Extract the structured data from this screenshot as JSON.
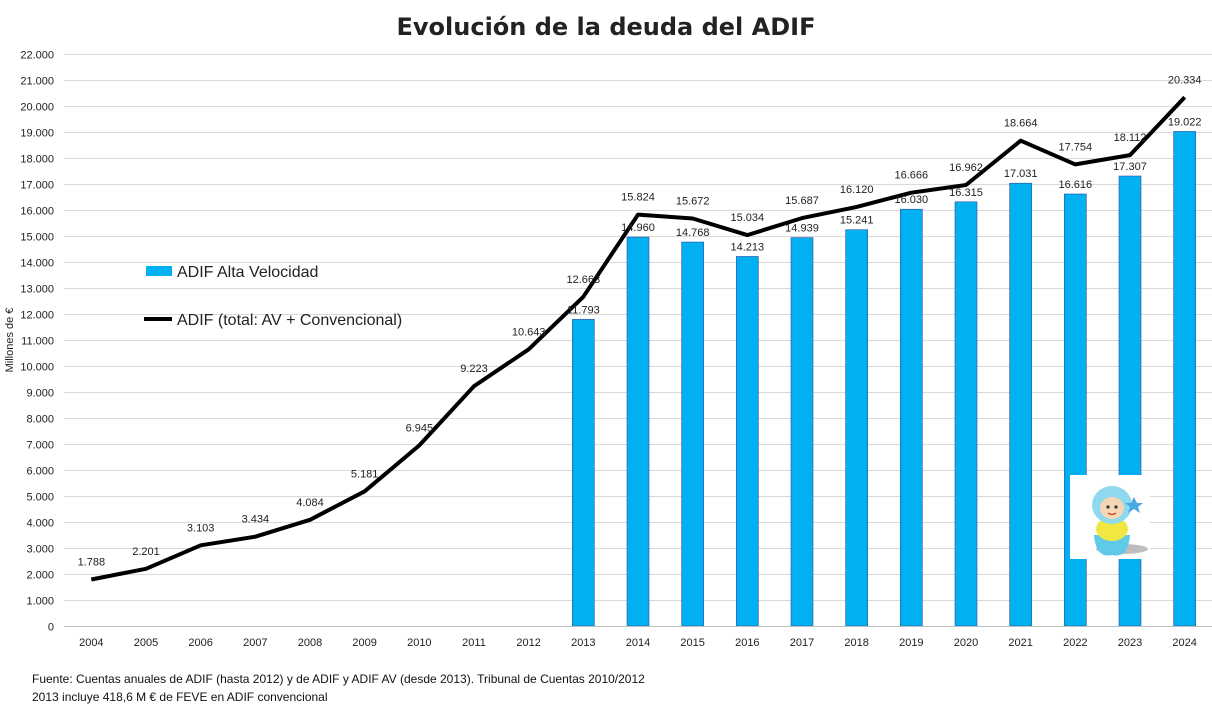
{
  "chart_data": {
    "type": "bar",
    "title": "Evolución de la deuda del ADIF",
    "ylabel": "Millones de €",
    "xlabel": "",
    "ylim": [
      0,
      22000
    ],
    "yticks": [
      0,
      1000,
      2000,
      3000,
      4000,
      5000,
      6000,
      7000,
      8000,
      9000,
      10000,
      11000,
      12000,
      13000,
      14000,
      15000,
      16000,
      17000,
      18000,
      19000,
      20000,
      21000,
      22000
    ],
    "ytick_labels": [
      "0",
      "1.000",
      "2.000",
      "3.000",
      "4.000",
      "5.000",
      "6.000",
      "7.000",
      "8.000",
      "9.000",
      "10.000",
      "11.000",
      "12.000",
      "13.000",
      "14.000",
      "15.000",
      "16.000",
      "17.000",
      "18.000",
      "19.000",
      "20.000",
      "21.000",
      "22.000"
    ],
    "grid": true,
    "legend_position": "left",
    "categories": [
      "2004",
      "2005",
      "2006",
      "2007",
      "2008",
      "2009",
      "2010",
      "2011",
      "2012",
      "2013",
      "2014",
      "2015",
      "2016",
      "2017",
      "2018",
      "2019",
      "2020",
      "2021",
      "2022",
      "2023",
      "2024"
    ],
    "series": [
      {
        "name": "ADIF Alta Velocidad",
        "type": "bar",
        "color": "#00B0F0",
        "values": [
          null,
          null,
          null,
          null,
          null,
          null,
          null,
          null,
          null,
          11793,
          14960,
          14768,
          14213,
          14939,
          15241,
          16030,
          16315,
          17031,
          16616,
          17307,
          19022
        ],
        "labels": [
          "",
          "",
          "",
          "",
          "",
          "",
          "",
          "",
          "",
          "11.793",
          "14.960",
          "14.768",
          "14.213",
          "14.939",
          "15.241",
          "16.030",
          "16.315",
          "17.031",
          "16.616",
          "17.307",
          "19.022"
        ]
      },
      {
        "name": "ADIF (total: AV + Convencional)",
        "type": "line",
        "color": "#000000",
        "values": [
          1788,
          2201,
          3103,
          3434,
          4084,
          5181,
          6945,
          9223,
          10643,
          12663,
          15824,
          15672,
          15034,
          15687,
          16120,
          16666,
          16962,
          18664,
          17754,
          18112,
          20334
        ],
        "labels": [
          "1.788",
          "2.201",
          "3.103",
          "3.434",
          "4.084",
          "5.181",
          "6.945",
          "9.223",
          "10.643",
          "12.663",
          "15.824",
          "15.672",
          "15.034",
          "15.687",
          "16.120",
          "16.666",
          "16.962",
          "18.664",
          "17.754",
          "18.112",
          "20.334"
        ]
      }
    ]
  },
  "notes": {
    "source": "Fuente: Cuentas anuales de ADIF (hasta 2012) y de ADIF y ADIF AV (desde 2013). Tribunal de Cuentas 2010/2012",
    "feve": "2013 incluye 418,6 M € de FEVE en ADIF convencional"
  },
  "image": {
    "icon": "toy-figure-icon"
  }
}
